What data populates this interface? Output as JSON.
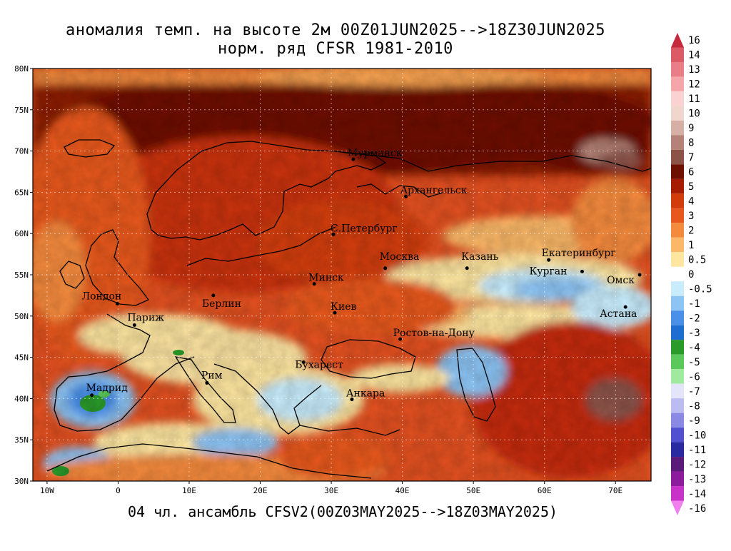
{
  "title": {
    "line1": "аномалия темп. на высоте 2м 00Z01JUN2025-->18Z30JUN2025",
    "line2": "норм. ряд CFSR 1981-2010"
  },
  "bottom_title": "04 чл. ансамбль CFSV2(00Z03MAY2025-->18Z03MAY2025)",
  "map": {
    "lon_range": [
      -12,
      75
    ],
    "lat_range": [
      30,
      80
    ],
    "lat_ticks": [
      "30N",
      "35N",
      "40N",
      "45N",
      "50N",
      "55N",
      "60N",
      "65N",
      "70N",
      "75N",
      "80N"
    ],
    "lon_ticks": [
      "10W",
      "0",
      "10E",
      "20E",
      "30E",
      "40E",
      "50E",
      "60E",
      "70E"
    ],
    "cities": [
      {
        "name": "Мурманск",
        "lon": 33.1,
        "lat": 69.0
      },
      {
        "name": "Архангельск",
        "lon": 40.5,
        "lat": 64.5
      },
      {
        "name": "С.Петербург",
        "lon": 30.3,
        "lat": 59.9
      },
      {
        "name": "Москва",
        "lon": 37.6,
        "lat": 55.8
      },
      {
        "name": "Казань",
        "lon": 49.1,
        "lat": 55.8
      },
      {
        "name": "Екатеринбург",
        "lon": 60.6,
        "lat": 56.8
      },
      {
        "name": "Курган",
        "lon": 65.3,
        "lat": 55.4
      },
      {
        "name": "Омск",
        "lon": 73.4,
        "lat": 55.0
      },
      {
        "name": "Астана",
        "lon": 71.4,
        "lat": 51.1
      },
      {
        "name": "Минск",
        "lon": 27.6,
        "lat": 53.9
      },
      {
        "name": "Киев",
        "lon": 30.5,
        "lat": 50.4
      },
      {
        "name": "Берлин",
        "lon": 13.4,
        "lat": 52.5
      },
      {
        "name": "Лондон",
        "lon": -0.1,
        "lat": 51.5
      },
      {
        "name": "Париж",
        "lon": 2.3,
        "lat": 48.9
      },
      {
        "name": "Ростов-на-Дону",
        "lon": 39.7,
        "lat": 47.2
      },
      {
        "name": "Бухарест",
        "lon": 26.1,
        "lat": 44.4
      },
      {
        "name": "Рим",
        "lon": 12.5,
        "lat": 41.9
      },
      {
        "name": "Мадрид",
        "lon": -3.7,
        "lat": 40.4
      },
      {
        "name": "Анкара",
        "lon": 32.9,
        "lat": 39.9
      }
    ]
  },
  "colorbar": {
    "entries": [
      {
        "label": "16",
        "color": "#c42a3c"
      },
      {
        "label": "14",
        "color": "#dc5a66"
      },
      {
        "label": "13",
        "color": "#ea7e86"
      },
      {
        "label": "12",
        "color": "#f4a6aa"
      },
      {
        "label": "11",
        "color": "#fad2d2"
      },
      {
        "label": "10",
        "color": "#f0d6cc"
      },
      {
        "label": "9",
        "color": "#d6b0a4"
      },
      {
        "label": "8",
        "color": "#b48276"
      },
      {
        "label": "7",
        "color": "#8c5248"
      },
      {
        "label": "6",
        "color": "#6e1000"
      },
      {
        "label": "5",
        "color": "#a51c00"
      },
      {
        "label": "4",
        "color": "#d23c0a"
      },
      {
        "label": "3",
        "color": "#e8581e"
      },
      {
        "label": "2",
        "color": "#f48a3c"
      },
      {
        "label": "1",
        "color": "#fbb868"
      },
      {
        "label": "0.5",
        "color": "#fee6a0"
      },
      {
        "label": "0",
        "color": "#ffffff"
      },
      {
        "label": "-0.5",
        "color": "#c8ecfc"
      },
      {
        "label": "-1",
        "color": "#8cc4f4"
      },
      {
        "label": "-2",
        "color": "#4a90e8"
      },
      {
        "label": "-3",
        "color": "#1e6ed2"
      },
      {
        "label": "-4",
        "color": "#2a9a2a"
      },
      {
        "label": "-5",
        "color": "#5ac85a"
      },
      {
        "label": "-6",
        "color": "#a0eaa0"
      },
      {
        "label": "-7",
        "color": "#e4e4fa"
      },
      {
        "label": "-8",
        "color": "#bcbcf0"
      },
      {
        "label": "-9",
        "color": "#8a8ae4"
      },
      {
        "label": "-10",
        "color": "#5050d0"
      },
      {
        "label": "-11",
        "color": "#2a2aa0"
      },
      {
        "label": "-12",
        "color": "#5a1a7a"
      },
      {
        "label": "-13",
        "color": "#8c1c9c"
      },
      {
        "label": "-14",
        "color": "#c832c8"
      },
      {
        "label": "-16",
        "color": "#f080f0"
      }
    ]
  }
}
